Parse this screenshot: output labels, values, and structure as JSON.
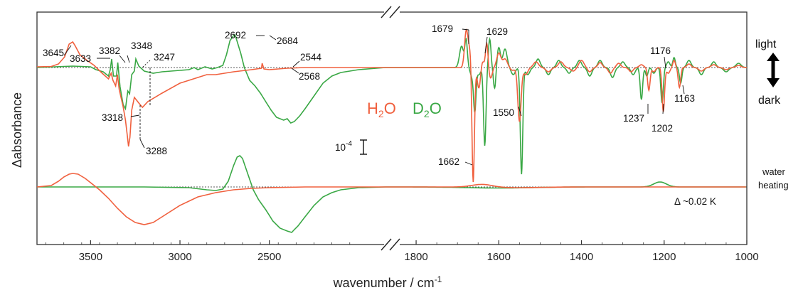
{
  "chart_data": {
    "type": "line",
    "title": "",
    "xlabel": "wavenumber / cm",
    "xlabel_superscript": "-1",
    "ylabel": "Δabsorbance",
    "colors": {
      "H2O": "#f0603e",
      "D2O": "#3aa845"
    },
    "x_axis_left": {
      "xlim": [
        3800,
        1850
      ],
      "ticks": [
        "3500",
        "3000",
        "2500"
      ],
      "tick_values": [
        3500,
        3000,
        2500
      ]
    },
    "x_axis_right": {
      "xlim": [
        1850,
        1000
      ],
      "ticks": [
        "1800",
        "1600",
        "1400",
        "1200",
        "1000"
      ],
      "tick_values": [
        1800,
        1600,
        1400,
        1200,
        1000
      ]
    },
    "legend": {
      "h2o": "H",
      "h2o_sub": "2",
      "h2o_end": "O",
      "d2o": "D",
      "d2o_sub": "2",
      "d2o_end": "O"
    },
    "scale_bar": {
      "base": "10",
      "exponent": "-4"
    },
    "side_labels": {
      "light": "light",
      "dark": "dark",
      "water": "water",
      "heating": "heating"
    },
    "delta_label": "Δ ~0.02 K",
    "panels": [
      {
        "name": "light-minus-dark",
        "series": [
          {
            "name": "H2O",
            "points": [
              [
                3800,
                1
              ],
              [
                3720,
                1.5
              ],
              [
                3680,
                5
              ],
              [
                3645,
                15
              ],
              [
                3620,
                33
              ],
              [
                3600,
                36
              ],
              [
                3585,
                30
              ],
              [
                3560,
                18
              ],
              [
                3520,
                10
              ],
              [
                3480,
                3
              ],
              [
                3440,
                -7
              ],
              [
                3400,
                -16
              ],
              [
                3385,
                -8
              ],
              [
                3375,
                -18
              ],
              [
                3360,
                -26
              ],
              [
                3350,
                -10
              ],
              [
                3340,
                -31
              ],
              [
                3318,
                -55
              ],
              [
                3305,
                -74
              ],
              [
                3295,
                -95
              ],
              [
                3288,
                -111
              ],
              [
                3280,
                -98
              ],
              [
                3270,
                -60
              ],
              [
                3255,
                -42
              ],
              [
                3230,
                -50
              ],
              [
                3210,
                -56
              ],
              [
                3180,
                -48
              ],
              [
                3100,
                -36
              ],
              [
                3000,
                -22
              ],
              [
                2900,
                -14
              ],
              [
                2850,
                -10
              ],
              [
                2800,
                -10
              ],
              [
                2700,
                -6
              ],
              [
                2600,
                -3
              ],
              [
                2544,
                -1
              ],
              [
                2540,
                6
              ],
              [
                2530,
                -2
              ],
              [
                2500,
                -3
              ],
              [
                2450,
                -2
              ],
              [
                2400,
                -1
              ],
              [
                2300,
                0
              ],
              [
                2200,
                0
              ],
              [
                2100,
                0
              ],
              [
                1850,
                0
              ]
            ]
          },
          {
            "name": "D2O",
            "points": [
              [
                3800,
                0
              ],
              [
                3700,
                1
              ],
              [
                3600,
                2
              ],
              [
                3500,
                1
              ],
              [
                3470,
                -3
              ],
              [
                3430,
                -6
              ],
              [
                3400,
                -12
              ],
              [
                3390,
                -3
              ],
              [
                3382,
                12
              ],
              [
                3372,
                -12
              ],
              [
                3355,
                -12
              ],
              [
                3348,
                7
              ],
              [
                3335,
                -27
              ],
              [
                3318,
                -52
              ],
              [
                3305,
                -58
              ],
              [
                3292,
                -33
              ],
              [
                3282,
                -37
              ],
              [
                3270,
                -10
              ],
              [
                3255,
                -5
              ],
              [
                3247,
                12
              ],
              [
                3230,
                2
              ],
              [
                3200,
                -5
              ],
              [
                3150,
                -8
              ],
              [
                3100,
                -6
              ],
              [
                3000,
                -4
              ],
              [
                2950,
                -3
              ],
              [
                2920,
                0
              ],
              [
                2900,
                -3
              ],
              [
                2860,
                1
              ],
              [
                2820,
                -2
              ],
              [
                2790,
                0
              ],
              [
                2760,
                3
              ],
              [
                2740,
                18
              ],
              [
                2720,
                38
              ],
              [
                2700,
                45
              ],
              [
                2692,
                46
              ],
              [
                2684,
                40
              ],
              [
                2660,
                20
              ],
              [
                2640,
                0
              ],
              [
                2610,
                -18
              ],
              [
                2580,
                -26
              ],
              [
                2550,
                -36
              ],
              [
                2520,
                -48
              ],
              [
                2490,
                -60
              ],
              [
                2460,
                -70
              ],
              [
                2420,
                -74
              ],
              [
                2400,
                -72
              ],
              [
                2380,
                -78
              ],
              [
                2360,
                -76
              ],
              [
                2330,
                -68
              ],
              [
                2300,
                -58
              ],
              [
                2250,
                -40
              ],
              [
                2200,
                -22
              ],
              [
                2150,
                -12
              ],
              [
                2100,
                -7
              ],
              [
                2000,
                -3
              ],
              [
                1900,
                -1
              ],
              [
                1850,
                0
              ]
            ]
          }
        ]
      },
      {
        "name": "water-heating",
        "series": [
          {
            "name": "H2O",
            "points": [
              [
                3800,
                0
              ],
              [
                3720,
                2
              ],
              [
                3680,
                8
              ],
              [
                3650,
                14
              ],
              [
                3620,
                18
              ],
              [
                3600,
                19
              ],
              [
                3570,
                18
              ],
              [
                3530,
                12
              ],
              [
                3500,
                6
              ],
              [
                3450,
                -4
              ],
              [
                3400,
                -16
              ],
              [
                3350,
                -30
              ],
              [
                3300,
                -42
              ],
              [
                3250,
                -50
              ],
              [
                3200,
                -53
              ],
              [
                3150,
                -50
              ],
              [
                3100,
                -42
              ],
              [
                3000,
                -26
              ],
              [
                2900,
                -14
              ],
              [
                2800,
                -8
              ],
              [
                2700,
                -4
              ],
              [
                2600,
                -2
              ],
              [
                2500,
                -1
              ],
              [
                2300,
                0
              ],
              [
                1850,
                0
              ]
            ]
          },
          {
            "name": "D2O",
            "points": [
              [
                3800,
                0
              ],
              [
                3500,
                0
              ],
              [
                3200,
                0
              ],
              [
                2950,
                -1
              ],
              [
                2850,
                -4
              ],
              [
                2800,
                -5
              ],
              [
                2760,
                -3
              ],
              [
                2730,
                8
              ],
              [
                2700,
                30
              ],
              [
                2680,
                42
              ],
              [
                2665,
                44
              ],
              [
                2650,
                40
              ],
              [
                2620,
                18
              ],
              [
                2590,
                -4
              ],
              [
                2560,
                -18
              ],
              [
                2520,
                -32
              ],
              [
                2480,
                -48
              ],
              [
                2440,
                -58
              ],
              [
                2400,
                -62
              ],
              [
                2375,
                -64
              ],
              [
                2360,
                -60
              ],
              [
                2340,
                -55
              ],
              [
                2300,
                -42
              ],
              [
                2250,
                -26
              ],
              [
                2200,
                -14
              ],
              [
                2150,
                -8
              ],
              [
                2100,
                -4
              ],
              [
                2000,
                -1
              ],
              [
                1850,
                0
              ]
            ]
          }
        ]
      }
    ],
    "annotations": [
      {
        "text": "3645"
      },
      {
        "text": "3633"
      },
      {
        "text": "3382"
      },
      {
        "text": "3348"
      },
      {
        "text": "3247"
      },
      {
        "text": "3318"
      },
      {
        "text": "3288"
      },
      {
        "text": "2692"
      },
      {
        "text": "2684"
      },
      {
        "text": "2544"
      },
      {
        "text": "2568"
      },
      {
        "text": "1679"
      },
      {
        "text": "1629"
      },
      {
        "text": "1662"
      },
      {
        "text": "1550"
      },
      {
        "text": "1237"
      },
      {
        "text": "1202"
      },
      {
        "text": "1176"
      },
      {
        "text": "1163"
      }
    ]
  }
}
